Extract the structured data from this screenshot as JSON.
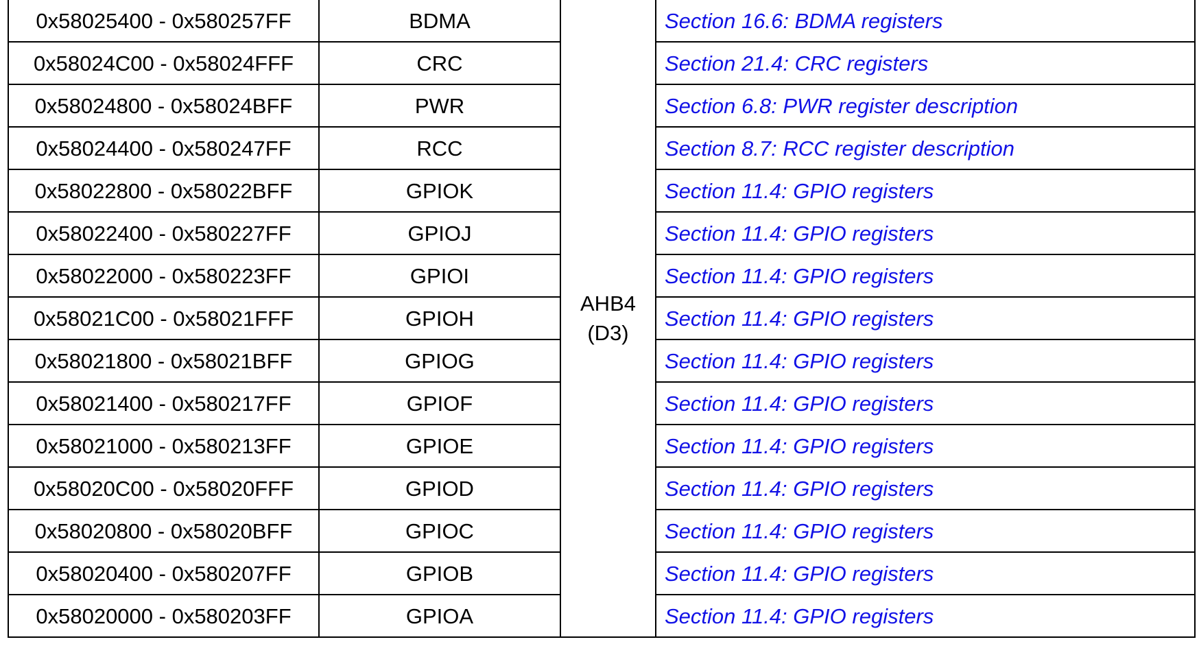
{
  "table": {
    "bus": {
      "line1": "AHB4",
      "line2": "(D3)"
    },
    "rows": [
      {
        "range": "0x58025400 - 0x580257FF",
        "peripheral": "BDMA",
        "register_map": "Section 16.6: BDMA registers"
      },
      {
        "range": "0x58024C00 - 0x58024FFF",
        "peripheral": "CRC",
        "register_map": "Section 21.4: CRC registers"
      },
      {
        "range": "0x58024800 - 0x58024BFF",
        "peripheral": "PWR",
        "register_map": "Section 6.8: PWR register description"
      },
      {
        "range": "0x58024400 - 0x580247FF",
        "peripheral": "RCC",
        "register_map": "Section 8.7: RCC register description"
      },
      {
        "range": "0x58022800 - 0x58022BFF",
        "peripheral": "GPIOK",
        "register_map": "Section 11.4: GPIO registers"
      },
      {
        "range": "0x58022400 - 0x580227FF",
        "peripheral": "GPIOJ",
        "register_map": "Section 11.4: GPIO registers"
      },
      {
        "range": "0x58022000 - 0x580223FF",
        "peripheral": "GPIOI",
        "register_map": "Section 11.4: GPIO registers"
      },
      {
        "range": "0x58021C00 - 0x58021FFF",
        "peripheral": "GPIOH",
        "register_map": "Section 11.4: GPIO registers"
      },
      {
        "range": "0x58021800 - 0x58021BFF",
        "peripheral": "GPIOG",
        "register_map": "Section 11.4: GPIO registers"
      },
      {
        "range": "0x58021400 - 0x580217FF",
        "peripheral": "GPIOF",
        "register_map": "Section 11.4: GPIO registers"
      },
      {
        "range": "0x58021000 - 0x580213FF",
        "peripheral": "GPIOE",
        "register_map": "Section 11.4: GPIO registers"
      },
      {
        "range": "0x58020C00 - 0x58020FFF",
        "peripheral": "GPIOD",
        "register_map": "Section 11.4: GPIO registers"
      },
      {
        "range": "0x58020800 - 0x58020BFF",
        "peripheral": "GPIOC",
        "register_map": "Section 11.4: GPIO registers"
      },
      {
        "range": "0x58020400 - 0x580207FF",
        "peripheral": "GPIOB",
        "register_map": "Section 11.4: GPIO registers"
      },
      {
        "range": "0x58020000 - 0x580203FF",
        "peripheral": "GPIOA",
        "register_map": "Section 11.4: GPIO registers"
      }
    ]
  },
  "colors": {
    "link": "#1212e6",
    "border": "#000000",
    "text": "#000000"
  }
}
